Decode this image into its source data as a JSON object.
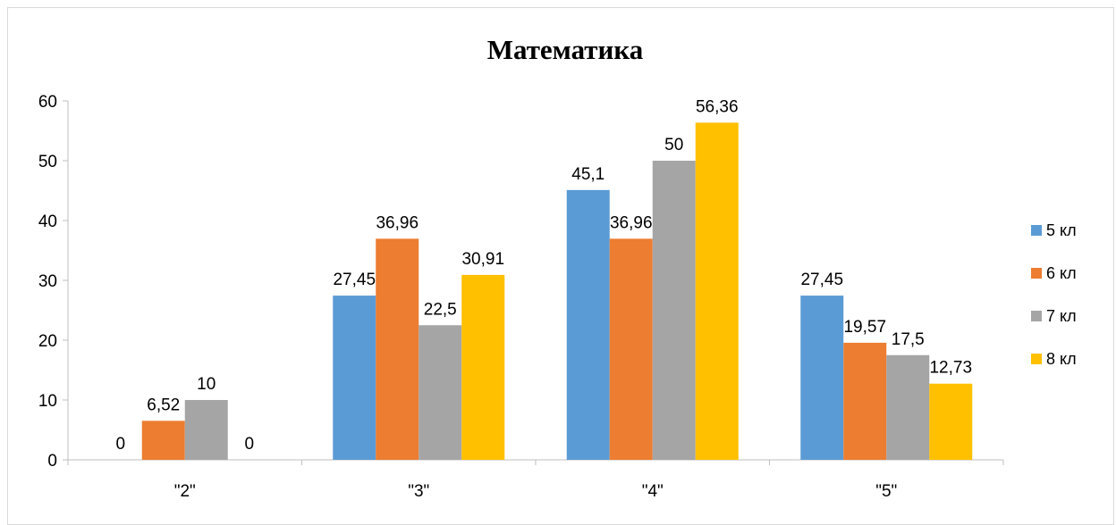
{
  "chart_data": {
    "type": "bar",
    "title": "Математика",
    "categories": [
      "\"2\"",
      "\"3\"",
      "\"4\"",
      "\"5\""
    ],
    "series": [
      {
        "name": "5 кл",
        "color": "#5B9BD5",
        "values": [
          0,
          27.45,
          45.1,
          27.45
        ],
        "labels": [
          "0",
          "27,45",
          "45,1",
          "27,45"
        ]
      },
      {
        "name": "6 кл",
        "color": "#ED7D31",
        "values": [
          6.52,
          36.96,
          36.96,
          19.57
        ],
        "labels": [
          "6,52",
          "36,96",
          "36,96",
          "19,57"
        ]
      },
      {
        "name": "7 кл",
        "color": "#A5A5A5",
        "values": [
          10,
          22.5,
          50,
          17.5
        ],
        "labels": [
          "10",
          "22,5",
          "50",
          "17,5"
        ]
      },
      {
        "name": "8 кл",
        "color": "#FFC000",
        "values": [
          0,
          30.91,
          56.36,
          12.73
        ],
        "labels": [
          "0",
          "30,91",
          "56,36",
          "12,73"
        ]
      }
    ],
    "ylim": [
      0,
      60
    ],
    "yticks": [
      "0",
      "10",
      "20",
      "30",
      "40",
      "50",
      "60"
    ],
    "xlabel": "",
    "ylabel": "",
    "grid": false,
    "legend_position": "right"
  }
}
